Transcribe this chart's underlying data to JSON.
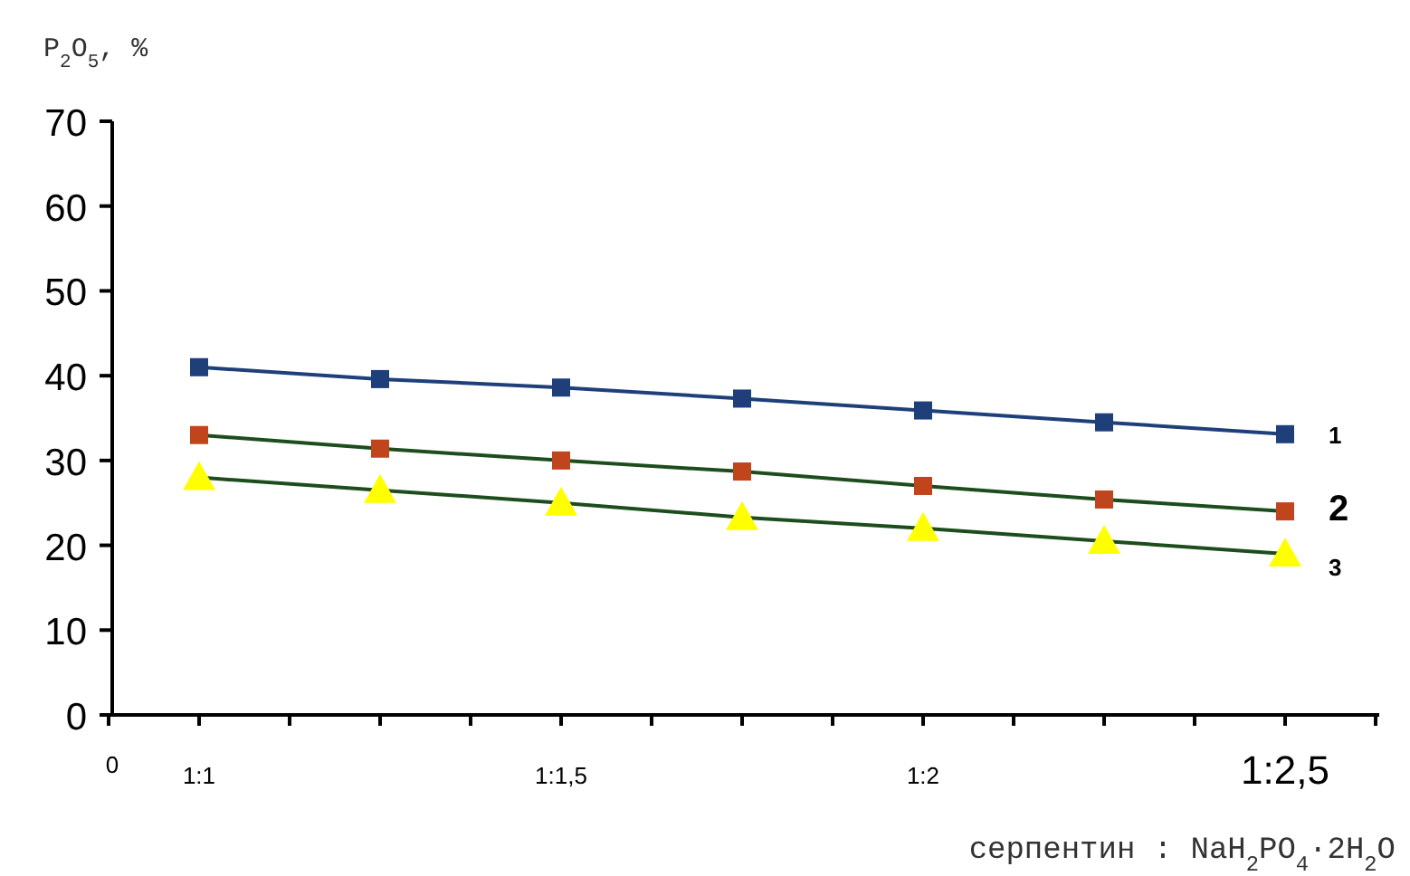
{
  "chart_data": {
    "type": "line",
    "xlabel": "серпентин : NaH$_{2}$PO$_{4}$·2H$_{2}$O",
    "ylabel": "P$_{2}$O$_{5}$, %",
    "categories": [
      "1:1",
      null,
      "1:1,5",
      null,
      "1:2",
      null,
      "1:2,5"
    ],
    "annotations": [
      "0"
    ],
    "ylim": [
      0,
      70
    ],
    "yticks": [
      0,
      10,
      20,
      30,
      40,
      50,
      60,
      70
    ],
    "grid": false,
    "series": [
      {
        "name": "1",
        "color": "#1f3f7a",
        "marker": "square",
        "values": [
          41,
          39.6,
          38.6,
          37.3,
          35.9,
          34.5,
          33.1
        ]
      },
      {
        "name": "2",
        "color": "#c0441c",
        "marker": "square",
        "values": [
          33,
          31.4,
          30,
          28.7,
          27,
          25.4,
          24
        ]
      },
      {
        "name": "3",
        "color": "#ffff00",
        "marker": "triangle",
        "values": [
          28,
          26.5,
          25,
          23.3,
          22,
          20.5,
          19
        ]
      }
    ]
  }
}
